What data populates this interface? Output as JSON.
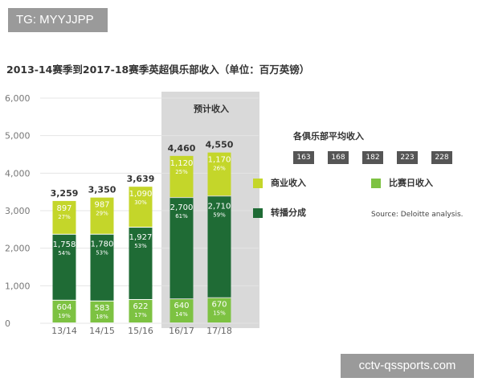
{
  "watermarks": {
    "top": "TG: MYYJJPP",
    "bottom": "cctv-qssports.com"
  },
  "colors": {
    "commercial": "#c4d62a",
    "broadcast": "#1f6b35",
    "matchday": "#7dc242",
    "forecast_bg": "#d9d9d9",
    "avg_box": "#555555",
    "gridline": "#e4e4e4"
  },
  "chart_data": {
    "type": "bar",
    "stacked": true,
    "title": "2013-14赛季到2017-18赛季英超俱乐部收入（单位：百万英镑）",
    "categories": [
      "13/14",
      "14/15",
      "15/16",
      "16/17",
      "17/18"
    ],
    "series": [
      {
        "name": "比赛日收入",
        "values": [
          604,
          583,
          622,
          640,
          670
        ],
        "percents": [
          "19%",
          "18%",
          "17%",
          "14%",
          "15%"
        ]
      },
      {
        "name": "转播分成",
        "values": [
          1758,
          1780,
          1927,
          2700,
          2710
        ],
        "percents": [
          "54%",
          "53%",
          "53%",
          "61%",
          "59%"
        ]
      },
      {
        "name": "商业收入",
        "values": [
          897,
          987,
          1090,
          1120,
          1170
        ],
        "percents": [
          "27%",
          "29%",
          "30%",
          "25%",
          "26%"
        ]
      }
    ],
    "totals": [
      "3,259",
      "3,350",
      "3,639",
      "4,460",
      "4,550"
    ],
    "value_labels": [
      [
        "604",
        "583",
        "622",
        "640",
        "670"
      ],
      [
        "1,758",
        "1,780",
        "1,927",
        "2,700",
        "2,710"
      ],
      [
        "897",
        "987",
        "1,090",
        "1,120",
        "1,170"
      ]
    ],
    "ylim": [
      0,
      6000
    ],
    "yticks": [
      0,
      1000,
      2000,
      3000,
      4000,
      5000,
      6000
    ],
    "ytick_labels": [
      "0",
      "1,000",
      "2,000",
      "3,000",
      "4,000",
      "5,000",
      "6,000"
    ],
    "grid": true,
    "forecast_label": "预计收入",
    "forecast_categories": [
      "16/17",
      "17/18"
    ],
    "average_title": "各俱乐部平均收入",
    "average_values": [
      "163",
      "168",
      "182",
      "223",
      "228"
    ],
    "legend": [
      {
        "name": "商业收入",
        "color": "#c4d62a"
      },
      {
        "name": "比赛日收入",
        "color": "#7dc242"
      },
      {
        "name": "转播分成",
        "color": "#1f6b35"
      }
    ],
    "source": "Source: Deloitte analysis."
  }
}
